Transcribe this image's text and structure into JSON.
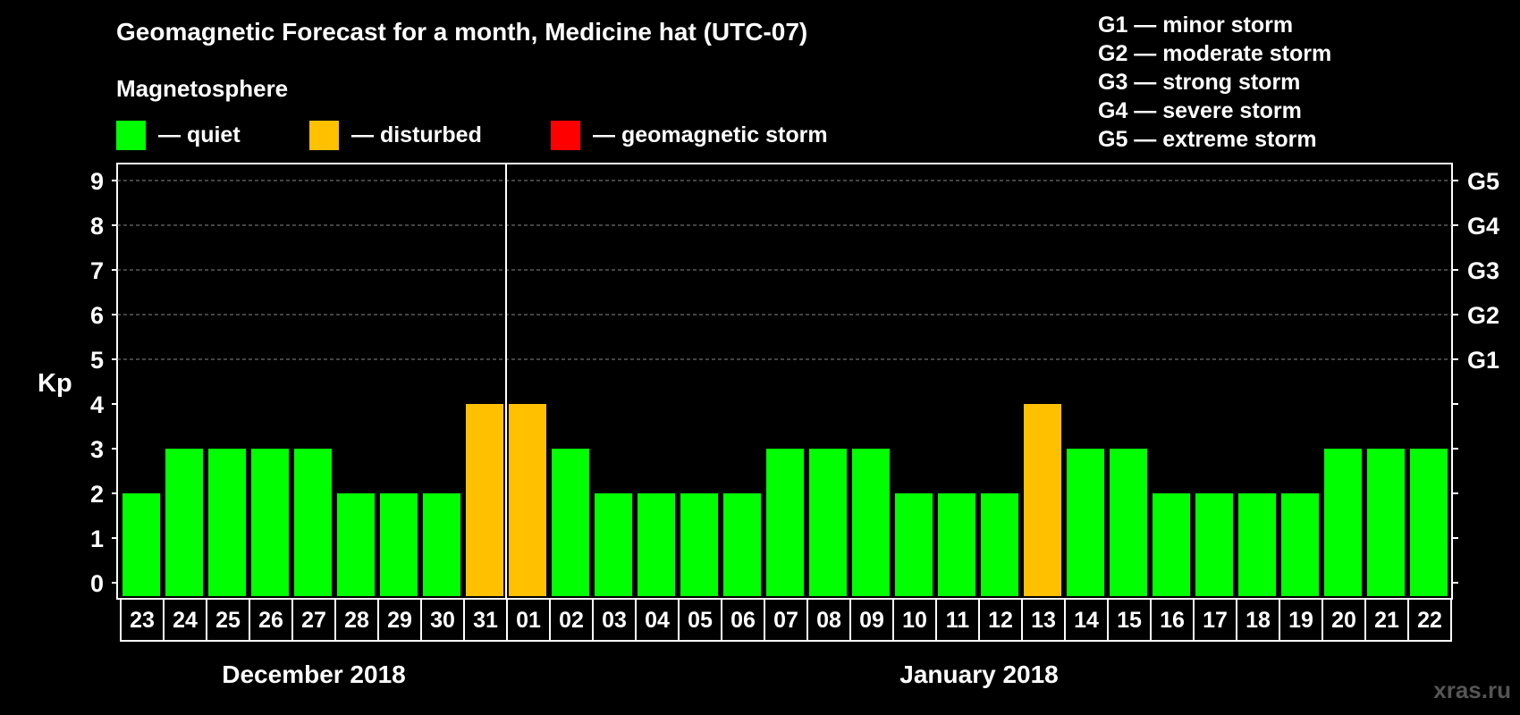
{
  "title": "Geomagnetic Forecast for a month, Medicine hat (UTC-07)",
  "magnetosphere_label": "Magnetosphere",
  "legend": [
    {
      "label": "— quiet",
      "color": "#00ff00"
    },
    {
      "label": "— disturbed",
      "color": "#ffc000"
    },
    {
      "label": "— geomagnetic storm",
      "color": "#ff0000"
    }
  ],
  "storm_levels": [
    "G1 — minor storm",
    "G2 — moderate storm",
    "G3 — strong storm",
    "G4 — severe storm",
    "G5 — extreme storm"
  ],
  "watermark": "xras.ru",
  "chart_data": {
    "type": "bar",
    "title": "Geomagnetic Forecast for a month, Medicine hat (UTC-07)",
    "ylabel": "Kp",
    "ylim": [
      0,
      9
    ],
    "yticks": [
      0,
      1,
      2,
      3,
      4,
      5,
      6,
      7,
      8,
      9
    ],
    "right_axis_labels": [
      {
        "kp": 5,
        "label": "G1"
      },
      {
        "kp": 6,
        "label": "G2"
      },
      {
        "kp": 7,
        "label": "G3"
      },
      {
        "kp": 8,
        "label": "G4"
      },
      {
        "kp": 9,
        "label": "G5"
      }
    ],
    "grid": "dashed at Kp 5-9",
    "categories": [
      "23",
      "24",
      "25",
      "26",
      "27",
      "28",
      "29",
      "30",
      "31",
      "01",
      "02",
      "03",
      "04",
      "05",
      "06",
      "07",
      "08",
      "09",
      "10",
      "11",
      "12",
      "13",
      "14",
      "15",
      "16",
      "17",
      "18",
      "19",
      "20",
      "21",
      "22"
    ],
    "values": [
      2,
      3,
      3,
      3,
      3,
      2,
      2,
      2,
      4,
      4,
      3,
      2,
      2,
      2,
      2,
      3,
      3,
      3,
      2,
      2,
      2,
      4,
      3,
      3,
      2,
      2,
      2,
      2,
      3,
      3,
      3
    ],
    "month_groups": [
      {
        "label": "December 2018",
        "days": 9
      },
      {
        "label": "January 2018",
        "days": 22
      }
    ],
    "color_rules": {
      "quiet_max": 3,
      "disturbed": 4,
      "storm_min": 5
    }
  }
}
